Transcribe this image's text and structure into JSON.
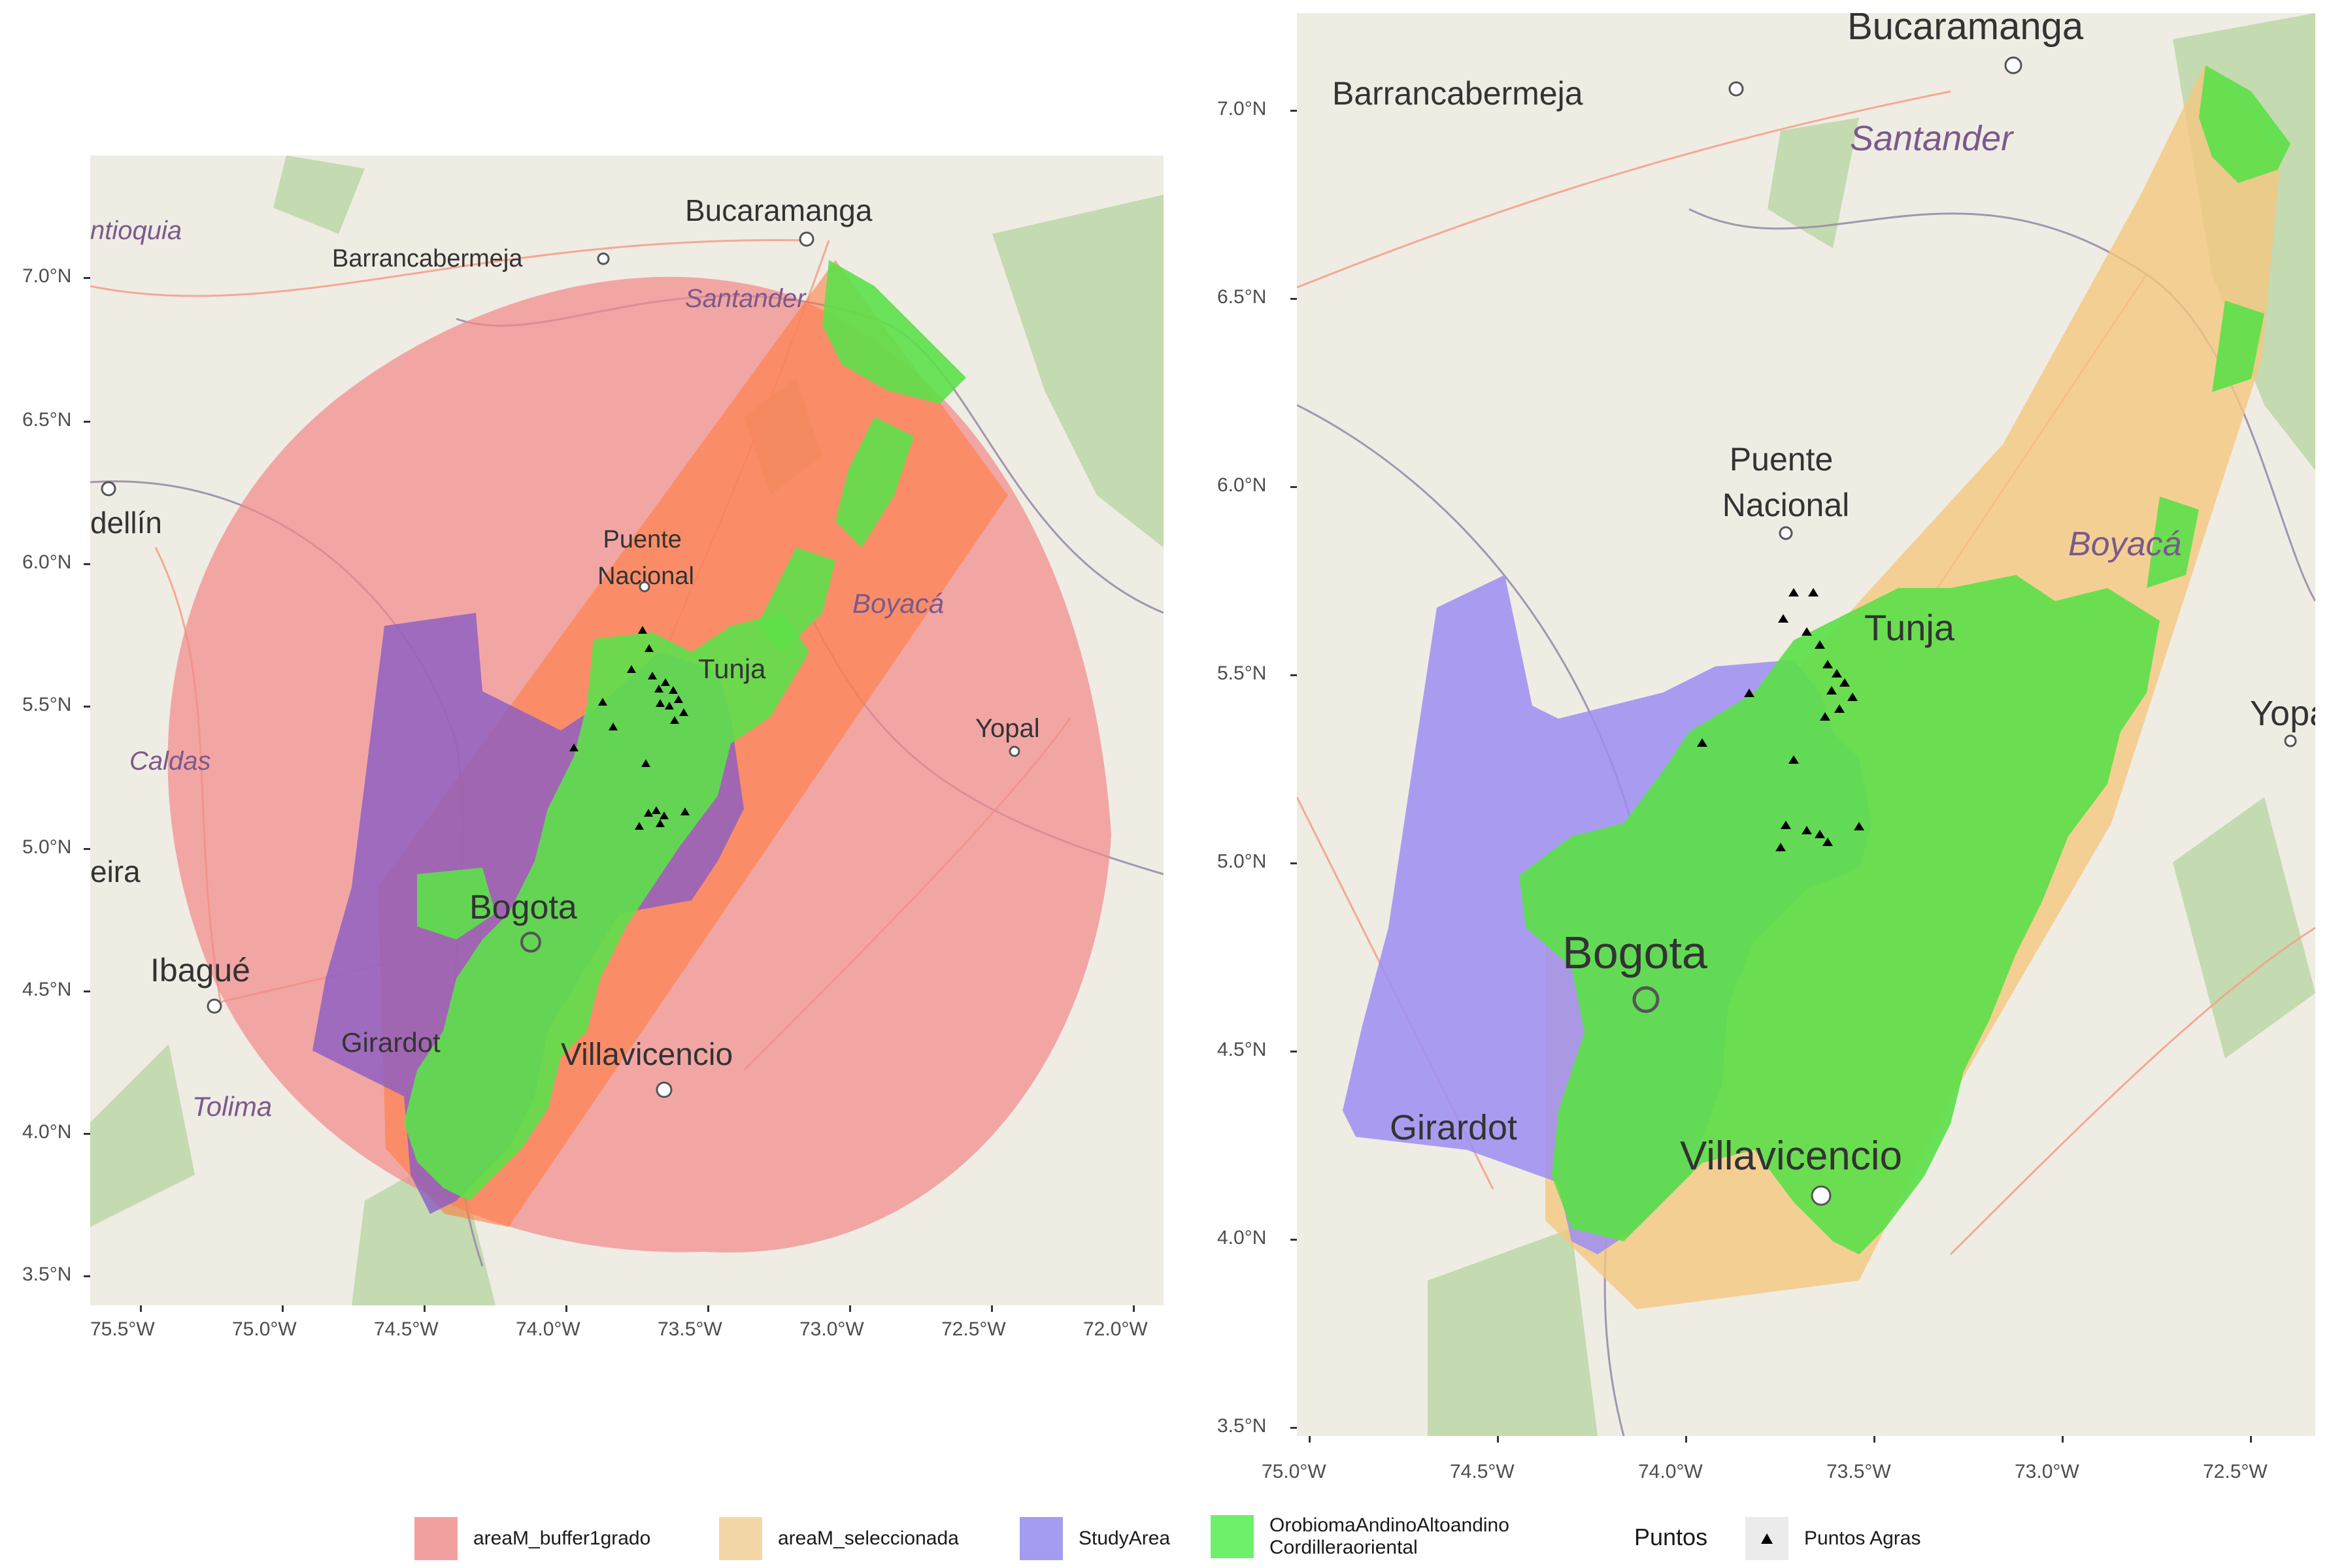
{
  "colors": {
    "buffer": "#f28b8b",
    "seleccionada": "#f5c77e",
    "study": "#9c8ef2",
    "orobioma": "#5de04a",
    "points": "#000000",
    "basemap": "#efece4",
    "roads": "#f4a28c",
    "borders": "#9a8ca8",
    "vegetation": "#b9d6a3"
  },
  "left_panel": {
    "x_ticks": [
      "75.5°W",
      "75.0°W",
      "74.5°W",
      "74.0°W",
      "73.5°W",
      "73.0°W",
      "72.5°W",
      "72.0°W"
    ],
    "y_ticks": [
      "7.0°N",
      "6.5°N",
      "6.0°N",
      "5.5°N",
      "5.0°N",
      "4.5°N",
      "4.0°N",
      "3.5°N"
    ],
    "place_labels": {
      "bucaramanga": "Bucaramanga",
      "barrancabermeja": "Barrancabermeja",
      "santander": "Santander",
      "antioquia": "ntioquia",
      "medellin": "dellín",
      "puente_nacional": "Puente\nNacional",
      "boyaca": "Boyacá",
      "tunja": "Tunja",
      "yopal": "Yopal",
      "caldas": "Caldas",
      "pereira": "eira",
      "bogota": "Bogota",
      "ibague": "Ibagué",
      "girardot": "Girardot",
      "villavicencio": "Villavicencio",
      "tolima": "Tolima"
    }
  },
  "right_panel": {
    "x_ticks": [
      "75.0°W",
      "74.5°W",
      "74.0°W",
      "73.5°W",
      "73.0°W",
      "72.5°W"
    ],
    "y_ticks": [
      "7.0°N",
      "6.5°N",
      "6.0°N",
      "5.5°N",
      "5.0°N",
      "4.5°N",
      "4.0°N",
      "3.5°N"
    ],
    "place_labels": {
      "bucaramanga": "Bucaramanga",
      "barrancabermeja": "Barrancabermeja",
      "santander": "Santander",
      "puente_nacional": "Puente\nNacional",
      "boyaca": "Boyacá",
      "tunja": "Tunja",
      "yopal": "Yopa",
      "bogota": "Bogota",
      "girardot": "Girardot",
      "villavicencio": "Villavicencio"
    }
  },
  "legend": {
    "items": [
      {
        "key": "buffer",
        "label": "areaM_buffer1grado"
      },
      {
        "key": "seleccionada",
        "label": "areaM_seleccionada"
      },
      {
        "key": "study",
        "label": "StudyArea"
      },
      {
        "key": "orobioma",
        "label": "OrobiomaAndinoAltoandino\nCordilleraoriental"
      }
    ],
    "points_title": "Puntos",
    "points_label": "Puntos Agras"
  }
}
